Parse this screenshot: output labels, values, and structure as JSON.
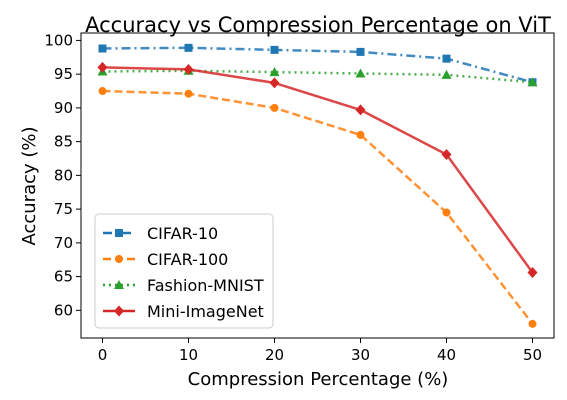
{
  "chart_data": {
    "type": "line",
    "title": "Accuracy vs Compression Percentage on ViT",
    "xlabel": "Compression Percentage (%)",
    "ylabel": "Accuracy (%)",
    "x": [
      0,
      10,
      20,
      30,
      40,
      50
    ],
    "xlim": [
      -2.5,
      52.5
    ],
    "ylim": [
      55.9,
      101.1
    ],
    "xticks": [
      0,
      10,
      20,
      30,
      40,
      50
    ],
    "yticks": [
      60,
      65,
      70,
      75,
      80,
      85,
      90,
      95,
      100
    ],
    "grid": false,
    "legend_position": "lower-left",
    "series": [
      {
        "name": "CIFAR-10",
        "values": [
          98.8,
          98.9,
          98.6,
          98.3,
          97.3,
          93.8
        ],
        "color": "#1f77b4",
        "marker": "square",
        "line_style": "dash-dot"
      },
      {
        "name": "CIFAR-100",
        "values": [
          92.5,
          92.1,
          90.0,
          86.0,
          74.5,
          58.0
        ],
        "color": "#ff7f0e",
        "marker": "circle",
        "line_style": "dashed"
      },
      {
        "name": "Fashion-MNIST",
        "values": [
          95.4,
          95.5,
          95.3,
          95.1,
          94.9,
          93.8
        ],
        "color": "#2ca02c",
        "marker": "triangle",
        "line_style": "dotted"
      },
      {
        "name": "Mini-ImageNet",
        "values": [
          96.0,
          95.7,
          93.7,
          89.7,
          83.1,
          65.6
        ],
        "color": "#d62728",
        "marker": "diamond",
        "line_style": "solid"
      }
    ]
  }
}
